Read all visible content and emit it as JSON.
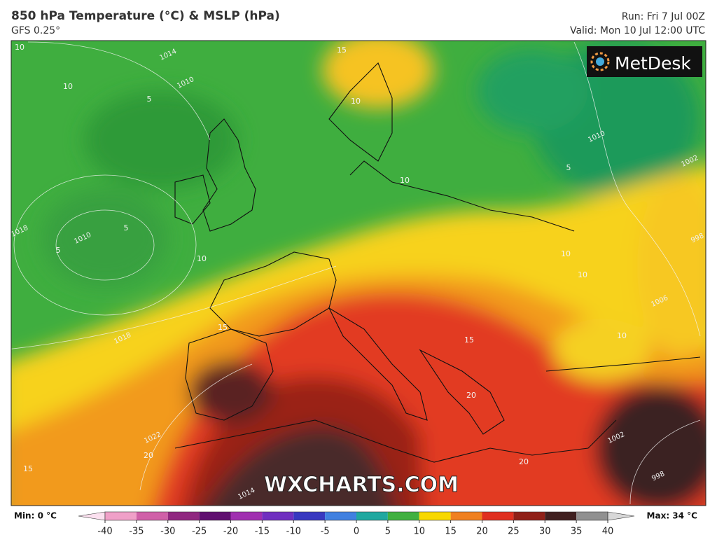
{
  "header": {
    "title": "850 hPa Temperature (°C) & MSLP (hPa)",
    "model": "GFS 0.25°",
    "run": "Run: Fri 7 Jul 00Z",
    "valid": "Valid: Mon 10 Jul 12:00 UTC"
  },
  "logo": "MetDesk",
  "watermark": "WXCHARTS.COM",
  "map": {
    "isobar_labels": [
      1014,
      1010,
      1018,
      1010,
      1018,
      1022,
      1014,
      1010,
      1002,
      1006,
      998,
      1002,
      998
    ],
    "isotherm_labels": [
      10,
      10,
      15,
      10,
      5,
      5,
      5,
      10,
      10,
      10,
      10,
      10,
      15,
      15,
      20,
      15,
      20,
      20,
      5
    ]
  },
  "legend": {
    "min": "Min: 0 °C",
    "max": "Max: 34 °C",
    "ticks": [
      -40,
      -35,
      -30,
      -25,
      -20,
      -15,
      -10,
      -5,
      0,
      5,
      10,
      15,
      20,
      25,
      30,
      35,
      40
    ],
    "colors": [
      "#fbe0ef",
      "#f0a0c8",
      "#d060a8",
      "#902880",
      "#601070",
      "#a030b0",
      "#7030c0",
      "#3838c0",
      "#4080e0",
      "#20a8a0",
      "#40b040",
      "#f8d800",
      "#f08020",
      "#e03020",
      "#902018",
      "#402020",
      "#909090",
      "#d8d8d8"
    ]
  }
}
